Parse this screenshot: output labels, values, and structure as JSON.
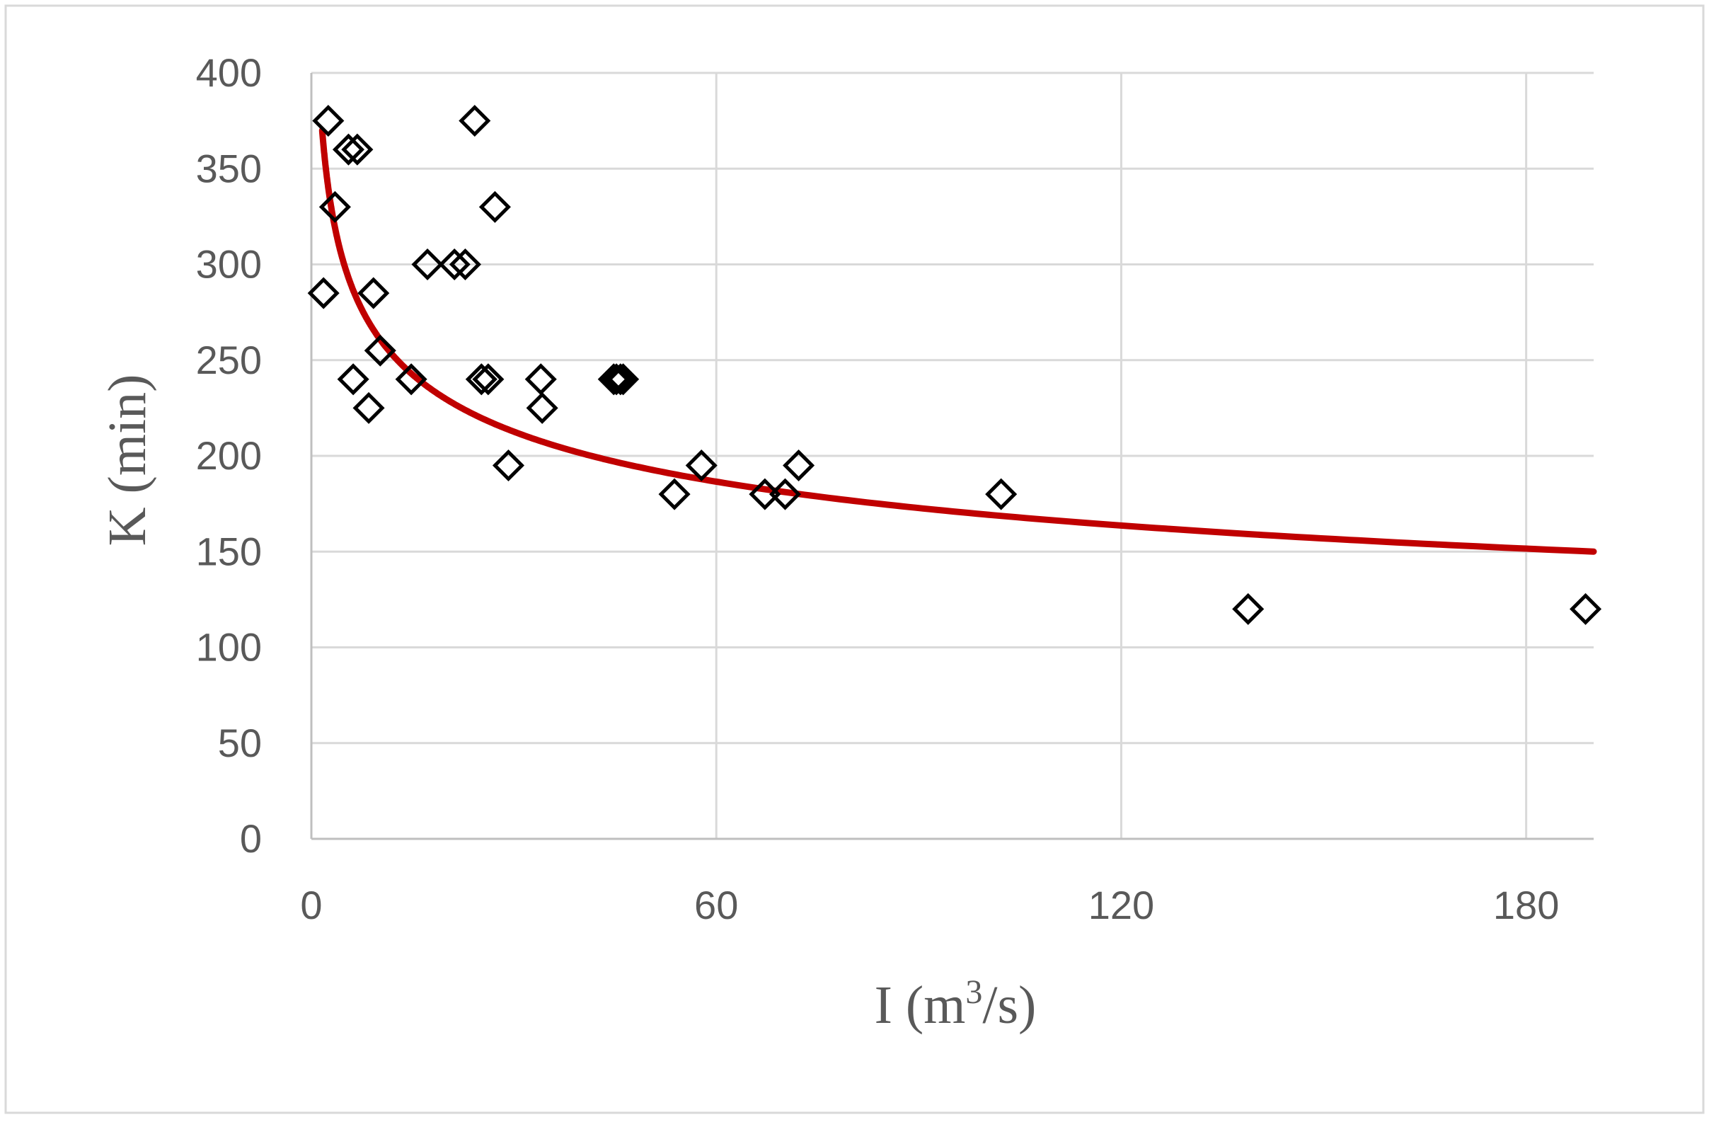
{
  "chart_data": {
    "type": "scatter",
    "title": "",
    "xlabel": "I (m³/s)",
    "xlabel_parts": {
      "main": "I (m",
      "sup": "3",
      "tail": "/s)"
    },
    "ylabel": "K (min)",
    "xlim": [
      0,
      190
    ],
    "ylim": [
      0,
      400
    ],
    "xticks": [
      0,
      60,
      120,
      180
    ],
    "yticks": [
      0,
      50,
      100,
      150,
      200,
      250,
      300,
      350,
      400
    ],
    "grid": true,
    "legend": "none",
    "series": [
      {
        "marker": "diamond-open",
        "color": "#000000",
        "points": [
          [
            2.5,
            375
          ],
          [
            1.8,
            285
          ],
          [
            3.5,
            330
          ],
          [
            5.5,
            360
          ],
          [
            6.8,
            360
          ],
          [
            6.2,
            240
          ],
          [
            8.5,
            225
          ],
          [
            9.2,
            285
          ],
          [
            10.2,
            255
          ],
          [
            14.8,
            240
          ],
          [
            17.2,
            300
          ],
          [
            21.2,
            300
          ],
          [
            22.8,
            300
          ],
          [
            24.2,
            375
          ],
          [
            25.2,
            240
          ],
          [
            26.2,
            240
          ],
          [
            27.2,
            330
          ],
          [
            29.2,
            195
          ],
          [
            34.0,
            240
          ],
          [
            34.2,
            225
          ],
          [
            44.8,
            240
          ],
          [
            45.2,
            240
          ],
          [
            45.8,
            240
          ],
          [
            46.2,
            240
          ],
          [
            53.8,
            180
          ],
          [
            57.8,
            195
          ],
          [
            67.2,
            180
          ],
          [
            70.2,
            180
          ],
          [
            72.2,
            195
          ],
          [
            102.2,
            180
          ],
          [
            138.8,
            120
          ],
          [
            188.8,
            120
          ]
        ]
      }
    ],
    "trendline": {
      "type": "power",
      "color": "#c00000",
      "coefficient": 404.4,
      "exponent": -0.189,
      "x_range": [
        1.6,
        190
      ]
    }
  }
}
